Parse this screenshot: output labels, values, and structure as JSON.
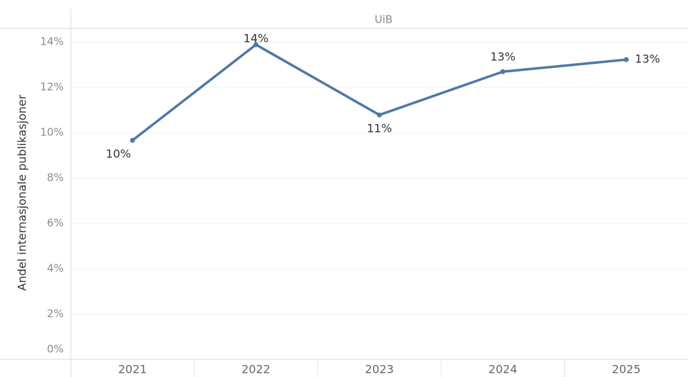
{
  "chart_data": {
    "type": "line",
    "header": "UiB",
    "ylabel": "Andel internasjonale publikasjoner",
    "categories": [
      "2021",
      "2022",
      "2023",
      "2024",
      "2025"
    ],
    "series": [
      {
        "name": "UiB",
        "color": "#4e79a7",
        "values": [
          9.66,
          13.88,
          10.78,
          12.69,
          13.22
        ],
        "value_labels": [
          "10%",
          "14%",
          "11%",
          "13%",
          "13%"
        ]
      }
    ],
    "ylim": [
      0,
      14.6
    ],
    "yticks": [
      {
        "value": 0,
        "label": "0%"
      },
      {
        "value": 2,
        "label": "2%"
      },
      {
        "value": 4,
        "label": "4%"
      },
      {
        "value": 6,
        "label": "6%"
      },
      {
        "value": 8,
        "label": "8%"
      },
      {
        "value": 10,
        "label": "10%"
      },
      {
        "value": 12,
        "label": "12%"
      },
      {
        "value": 14,
        "label": "14%"
      }
    ],
    "grid": true
  }
}
